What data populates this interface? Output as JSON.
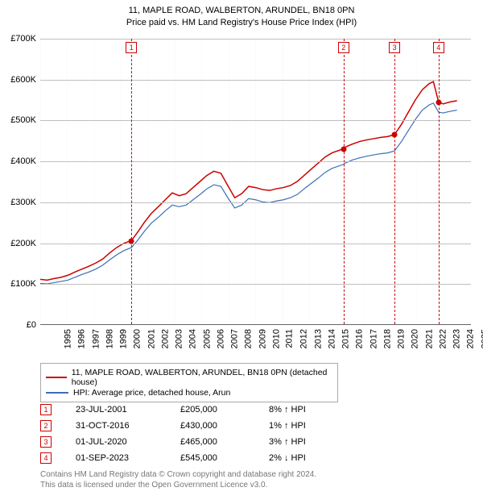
{
  "title_line1": "11, MAPLE ROAD, WALBERTON, ARUNDEL, BN18 0PN",
  "title_line2": "Price paid vs. HM Land Registry's House Price Index (HPI)",
  "title_fontsize": 12,
  "chart": {
    "type": "line",
    "background_color": "#ffffff",
    "band_color": "#f3f6fb",
    "grid_color": "#bfbfbf",
    "x_start_year": 1995,
    "x_end_year": 2026,
    "xticks": [
      1995,
      1996,
      1997,
      1998,
      1999,
      2000,
      2001,
      2002,
      2003,
      2004,
      2005,
      2006,
      2007,
      2008,
      2009,
      2010,
      2011,
      2012,
      2013,
      2014,
      2015,
      2016,
      2017,
      2018,
      2019,
      2020,
      2021,
      2022,
      2023,
      2024,
      2025,
      2026
    ],
    "ylim": [
      0,
      700000
    ],
    "ytick_step": 100000,
    "yticks": [
      "£0",
      "£100K",
      "£200K",
      "£300K",
      "£400K",
      "£500K",
      "£600K",
      "£700K"
    ],
    "tick_fontsize": 11,
    "series": [
      {
        "name": "11, MAPLE ROAD, WALBERTON, ARUNDEL, BN18 0PN (detached house)",
        "color": "#cc0000",
        "width": 1.5,
        "data": [
          [
            1995.0,
            110000
          ],
          [
            1995.5,
            108000
          ],
          [
            1996.0,
            112000
          ],
          [
            1996.5,
            115000
          ],
          [
            1997.0,
            120000
          ],
          [
            1997.5,
            128000
          ],
          [
            1998.0,
            135000
          ],
          [
            1998.5,
            142000
          ],
          [
            1999.0,
            150000
          ],
          [
            1999.5,
            160000
          ],
          [
            2000.0,
            175000
          ],
          [
            2000.5,
            188000
          ],
          [
            2001.0,
            198000
          ],
          [
            2001.56,
            205000
          ],
          [
            2002.0,
            225000
          ],
          [
            2002.5,
            250000
          ],
          [
            2003.0,
            272000
          ],
          [
            2003.5,
            288000
          ],
          [
            2004.0,
            305000
          ],
          [
            2004.5,
            322000
          ],
          [
            2005.0,
            315000
          ],
          [
            2005.5,
            320000
          ],
          [
            2006.0,
            335000
          ],
          [
            2006.5,
            350000
          ],
          [
            2007.0,
            365000
          ],
          [
            2007.5,
            375000
          ],
          [
            2008.0,
            370000
          ],
          [
            2008.5,
            340000
          ],
          [
            2009.0,
            310000
          ],
          [
            2009.5,
            320000
          ],
          [
            2010.0,
            338000
          ],
          [
            2010.5,
            335000
          ],
          [
            2011.0,
            330000
          ],
          [
            2011.5,
            328000
          ],
          [
            2012.0,
            332000
          ],
          [
            2012.5,
            335000
          ],
          [
            2013.0,
            340000
          ],
          [
            2013.5,
            350000
          ],
          [
            2014.0,
            365000
          ],
          [
            2014.5,
            380000
          ],
          [
            2015.0,
            395000
          ],
          [
            2015.5,
            410000
          ],
          [
            2016.0,
            420000
          ],
          [
            2016.83,
            430000
          ],
          [
            2017.0,
            435000
          ],
          [
            2017.5,
            442000
          ],
          [
            2018.0,
            448000
          ],
          [
            2018.5,
            452000
          ],
          [
            2019.0,
            455000
          ],
          [
            2019.5,
            458000
          ],
          [
            2020.0,
            460000
          ],
          [
            2020.5,
            465000
          ],
          [
            2021.0,
            490000
          ],
          [
            2021.5,
            520000
          ],
          [
            2022.0,
            550000
          ],
          [
            2022.5,
            575000
          ],
          [
            2023.0,
            590000
          ],
          [
            2023.3,
            595000
          ],
          [
            2023.67,
            545000
          ],
          [
            2024.0,
            540000
          ],
          [
            2024.5,
            545000
          ],
          [
            2025.0,
            548000
          ]
        ]
      },
      {
        "name": "HPI: Average price, detached house, Arun",
        "color": "#3b6fb6",
        "width": 1.2,
        "data": [
          [
            1995.0,
            100000
          ],
          [
            1995.5,
            99000
          ],
          [
            1996.0,
            102000
          ],
          [
            1996.5,
            105000
          ],
          [
            1997.0,
            108000
          ],
          [
            1997.5,
            115000
          ],
          [
            1998.0,
            122000
          ],
          [
            1998.5,
            128000
          ],
          [
            1999.0,
            135000
          ],
          [
            1999.5,
            145000
          ],
          [
            2000.0,
            158000
          ],
          [
            2000.5,
            170000
          ],
          [
            2001.0,
            180000
          ],
          [
            2001.56,
            188000
          ],
          [
            2002.0,
            205000
          ],
          [
            2002.5,
            228000
          ],
          [
            2003.0,
            248000
          ],
          [
            2003.5,
            262000
          ],
          [
            2004.0,
            278000
          ],
          [
            2004.5,
            292000
          ],
          [
            2005.0,
            288000
          ],
          [
            2005.5,
            292000
          ],
          [
            2006.0,
            305000
          ],
          [
            2006.5,
            318000
          ],
          [
            2007.0,
            332000
          ],
          [
            2007.5,
            342000
          ],
          [
            2008.0,
            338000
          ],
          [
            2008.5,
            310000
          ],
          [
            2009.0,
            285000
          ],
          [
            2009.5,
            292000
          ],
          [
            2010.0,
            308000
          ],
          [
            2010.5,
            305000
          ],
          [
            2011.0,
            300000
          ],
          [
            2011.5,
            298000
          ],
          [
            2012.0,
            302000
          ],
          [
            2012.5,
            305000
          ],
          [
            2013.0,
            310000
          ],
          [
            2013.5,
            318000
          ],
          [
            2014.0,
            332000
          ],
          [
            2014.5,
            345000
          ],
          [
            2015.0,
            358000
          ],
          [
            2015.5,
            372000
          ],
          [
            2016.0,
            382000
          ],
          [
            2016.83,
            392000
          ],
          [
            2017.0,
            396000
          ],
          [
            2017.5,
            403000
          ],
          [
            2018.0,
            408000
          ],
          [
            2018.5,
            412000
          ],
          [
            2019.0,
            415000
          ],
          [
            2019.5,
            418000
          ],
          [
            2020.0,
            420000
          ],
          [
            2020.5,
            425000
          ],
          [
            2021.0,
            448000
          ],
          [
            2021.5,
            475000
          ],
          [
            2022.0,
            502000
          ],
          [
            2022.5,
            525000
          ],
          [
            2023.0,
            538000
          ],
          [
            2023.3,
            542000
          ],
          [
            2023.67,
            520000
          ],
          [
            2024.0,
            518000
          ],
          [
            2024.5,
            522000
          ],
          [
            2025.0,
            525000
          ]
        ]
      }
    ],
    "events": [
      {
        "n": "1",
        "year": 2001.56,
        "price": 205000,
        "date": "23-JUL-2001",
        "price_label": "£205,000",
        "delta": "8% ↑ HPI"
      },
      {
        "n": "2",
        "year": 2016.83,
        "price": 430000,
        "date": "31-OCT-2016",
        "price_label": "£430,000",
        "delta": "1% ↑ HPI"
      },
      {
        "n": "3",
        "year": 2020.5,
        "price": 465000,
        "date": "01-JUL-2020",
        "price_label": "£465,000",
        "delta": "3% ↑ HPI"
      },
      {
        "n": "4",
        "year": 2023.67,
        "price": 545000,
        "date": "01-SEP-2023",
        "price_label": "£545,000",
        "delta": "2% ↓ HPI"
      }
    ]
  },
  "legend": {
    "series1": "11, MAPLE ROAD, WALBERTON, ARUNDEL, BN18 0PN (detached house)",
    "series2": "HPI: Average price, detached house, Arun"
  },
  "footer_line1": "Contains HM Land Registry data © Crown copyright and database right 2024.",
  "footer_line2": "This data is licensed under the Open Government Licence v3.0."
}
